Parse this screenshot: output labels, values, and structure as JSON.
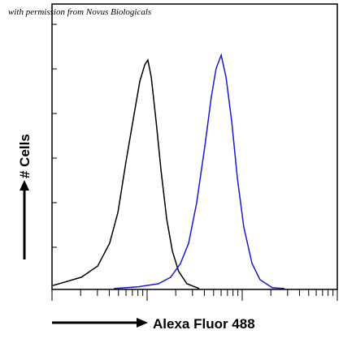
{
  "chart_data": {
    "type": "line",
    "note_text": "with permission from Novus Biologicals",
    "x_label": "Alexa Fluor 488",
    "y_label": "# Cells",
    "xlim": [
      0,
      100
    ],
    "ylim": [
      0,
      100
    ],
    "log_x": true,
    "series": [
      {
        "color": "#000000",
        "x": [
          0.3,
          4.6,
          10.3,
          16,
          20.2,
          23.1,
          25.9,
          28.8,
          30.8,
          32.5,
          33.6,
          34.8,
          36.5,
          38.2,
          40.2,
          42.2,
          44.4,
          47.3,
          51.6
        ],
        "values": [
          1.4,
          2.6,
          4.3,
          8.2,
          16.2,
          27,
          44.6,
          61.6,
          73,
          78.7,
          80.4,
          74.4,
          58.8,
          41.8,
          24.7,
          13.4,
          6.3,
          2,
          0.3
        ]
      },
      {
        "color": "#1a1acc",
        "x": [
          21.7,
          30.2,
          37.3,
          41.6,
          45,
          47.9,
          50.7,
          53.6,
          55.8,
          57.5,
          59.3,
          61,
          63,
          65,
          67.2,
          70.1,
          72.9,
          77.2,
          81.5
        ],
        "values": [
          0.3,
          0.9,
          2,
          4.3,
          9.1,
          16.2,
          30.4,
          50.3,
          67.3,
          77.3,
          82.1,
          74.4,
          58.8,
          38.9,
          21.9,
          9.1,
          3.4,
          0.6,
          0.3
        ]
      }
    ]
  }
}
